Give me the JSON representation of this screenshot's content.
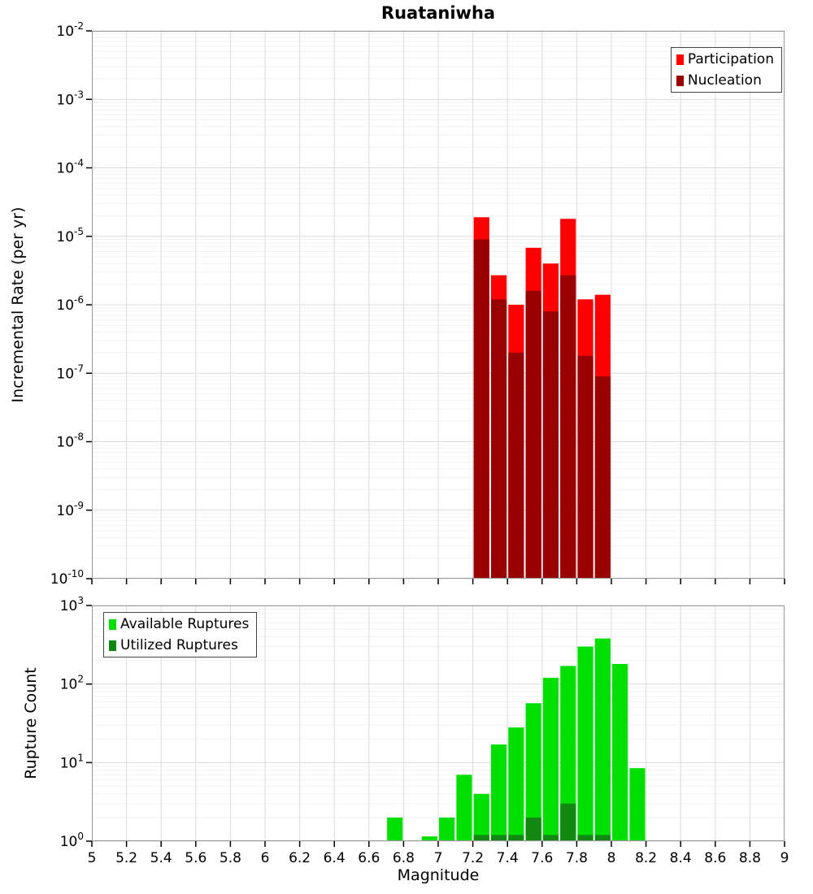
{
  "title": "Ruataniwha",
  "colors": {
    "participation": "#ff0000",
    "nucleation": "#990000",
    "available": "#00e000",
    "utilized": "#118811",
    "grid_major": "#dcdcdc",
    "grid_minor": "#f2f2f2",
    "frame": "#999999",
    "tick": "#000000"
  },
  "chart_data": [
    {
      "type": "bar",
      "panel": "top",
      "title": "Ruataniwha",
      "ylabel": "Incremental Rate (per yr)",
      "yscale": "log",
      "ylim": [
        1e-10,
        0.01
      ],
      "xlim": [
        5,
        9
      ],
      "bin_width": 0.1,
      "grid": true,
      "legend_position": "top-right",
      "ytick_exponents": [
        -2,
        -3,
        -4,
        -5,
        -6,
        -7,
        -8,
        -9,
        -10
      ],
      "series": [
        {
          "name": "Participation",
          "color_key": "participation",
          "x": [
            7.25,
            7.35,
            7.45,
            7.55,
            7.65,
            7.75,
            7.85,
            7.95
          ],
          "values": [
            1.9e-05,
            2.7e-06,
            1e-06,
            6.8e-06,
            4e-06,
            1.8e-05,
            1.2e-06,
            1.4e-06
          ]
        },
        {
          "name": "Nucleation",
          "color_key": "nucleation",
          "x": [
            7.25,
            7.35,
            7.45,
            7.55,
            7.65,
            7.75,
            7.85,
            7.95
          ],
          "values": [
            9e-06,
            1.2e-06,
            2e-07,
            1.6e-06,
            8e-07,
            2.7e-06,
            1.8e-07,
            9e-08
          ]
        }
      ]
    },
    {
      "type": "bar",
      "panel": "bottom",
      "ylabel": "Rupture Count",
      "xlabel": "Magnitude",
      "yscale": "log",
      "ylim": [
        1,
        1000
      ],
      "xlim": [
        5,
        9
      ],
      "bin_width": 0.1,
      "grid": true,
      "legend_position": "top-left",
      "ytick_exponents": [
        0,
        1,
        2,
        3
      ],
      "xtick_labels": [
        "5",
        "5.2",
        "5.4",
        "5.6",
        "5.8",
        "6",
        "6.2",
        "6.4",
        "6.6",
        "6.8",
        "7",
        "7.2",
        "7.4",
        "7.6",
        "7.8",
        "8",
        "8.2",
        "8.4",
        "8.6",
        "8.8",
        "9"
      ],
      "series": [
        {
          "name": "Available Ruptures",
          "color_key": "available",
          "x": [
            6.75,
            6.95,
            7.05,
            7.15,
            7.25,
            7.35,
            7.45,
            7.55,
            7.65,
            7.75,
            7.85,
            7.95,
            8.05,
            8.15
          ],
          "values": [
            2,
            1.15,
            2,
            7,
            4,
            17,
            28,
            57,
            120,
            170,
            300,
            380,
            180,
            8.5
          ]
        },
        {
          "name": "Utilized Ruptures",
          "color_key": "utilized",
          "x": [
            7.25,
            7.35,
            7.45,
            7.55,
            7.65,
            7.75,
            7.85,
            7.95
          ],
          "values": [
            1.2,
            1.2,
            1.2,
            2,
            1.2,
            3,
            1.2,
            1.2
          ]
        }
      ]
    }
  ]
}
